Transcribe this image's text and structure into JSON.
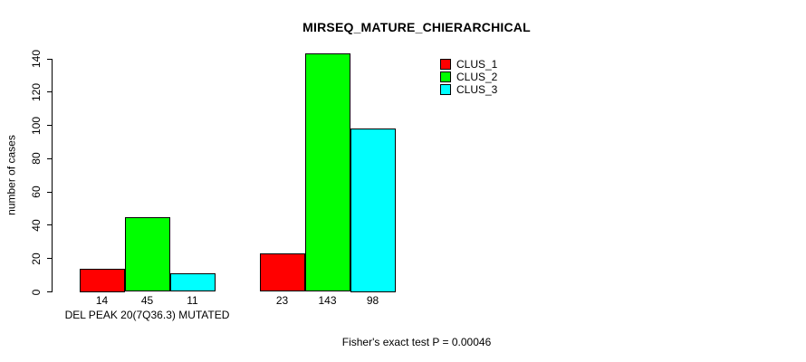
{
  "chart_data": {
    "type": "bar",
    "title": "MIRSEQ_MATURE_CHIERARCHICAL",
    "ylabel": "number of cases",
    "xlabel": "DEL PEAK 20(7Q36.3) MUTATED",
    "ylim": [
      0,
      140
    ],
    "yticks": [
      0,
      20,
      40,
      60,
      80,
      100,
      120,
      140
    ],
    "grid": false,
    "background_color": "#FFFFFF",
    "axis_color": "#000000",
    "bar_border_color": "#000000",
    "num_groups": 2,
    "series": [
      {
        "name": "CLUS_1",
        "color": "#FF0000",
        "values": [
          14,
          23
        ]
      },
      {
        "name": "CLUS_2",
        "color": "#00FF00",
        "values": [
          45,
          143
        ]
      },
      {
        "name": "CLUS_3",
        "color": "#00FFFF",
        "values": [
          11,
          98
        ]
      }
    ],
    "bar_value_labels": [
      [
        14,
        45,
        11
      ],
      [
        23,
        143,
        98
      ]
    ],
    "legend_position": "top-right",
    "annotation": "Fisher's exact test P = 0.00046"
  }
}
